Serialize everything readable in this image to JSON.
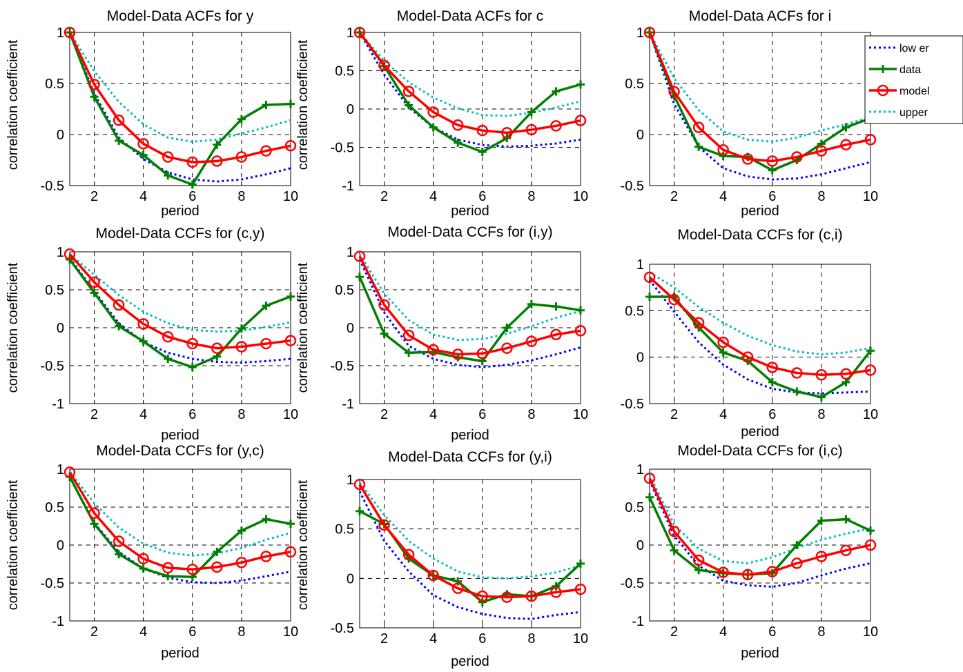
{
  "legend": {
    "entries": [
      "low er",
      "data",
      "model",
      "upper"
    ],
    "placement": "right of top-right panel"
  },
  "colors": {
    "lower": "#0000ff",
    "data": "#007f00",
    "model": "#ff0000",
    "upper": "#00bfbf",
    "grid": "#000000"
  },
  "chart_data": [
    {
      "type": "line",
      "title": "Model-Data ACFs for y",
      "xlabel": "period",
      "ylabel": "correlation coefficient",
      "xlim": [
        1,
        10
      ],
      "ylim": [
        -0.5,
        1
      ],
      "grid": true,
      "xticks": [
        2,
        4,
        6,
        8,
        10
      ],
      "yticks": [
        -0.5,
        0,
        0.5,
        1
      ],
      "ytick_labels": [
        "-0.5",
        "0",
        "0.5",
        "1"
      ],
      "x": [
        1,
        2,
        3,
        4,
        5,
        6,
        7,
        8,
        9,
        10
      ],
      "series": [
        {
          "name": "low er",
          "values": [
            1.0,
            0.4,
            -0.03,
            -0.24,
            -0.37,
            -0.44,
            -0.46,
            -0.44,
            -0.39,
            -0.33
          ]
        },
        {
          "name": "data",
          "values": [
            1.0,
            0.37,
            -0.06,
            -0.2,
            -0.4,
            -0.49,
            -0.1,
            0.15,
            0.29,
            0.3
          ]
        },
        {
          "name": "model",
          "values": [
            1.0,
            0.49,
            0.14,
            -0.09,
            -0.22,
            -0.27,
            -0.26,
            -0.22,
            -0.16,
            -0.11
          ]
        },
        {
          "name": "upper",
          "values": [
            1.0,
            0.62,
            0.32,
            0.1,
            -0.03,
            -0.07,
            -0.05,
            0.01,
            0.07,
            0.14
          ]
        }
      ]
    },
    {
      "type": "line",
      "title": "Model-Data ACFs for c",
      "xlabel": "period",
      "ylabel": "correlation coefficient",
      "xlim": [
        1,
        10
      ],
      "ylim": [
        -1,
        1
      ],
      "grid": true,
      "xticks": [
        2,
        4,
        6,
        8,
        10
      ],
      "yticks": [
        -1,
        -0.5,
        0,
        0.5,
        1
      ],
      "ytick_labels": [
        "-1",
        "-0.5",
        "0",
        "0.5",
        "1"
      ],
      "x": [
        1,
        2,
        3,
        4,
        5,
        6,
        7,
        8,
        9,
        10
      ],
      "series": [
        {
          "name": "low er",
          "values": [
            1.0,
            0.45,
            0.02,
            -0.24,
            -0.4,
            -0.47,
            -0.49,
            -0.48,
            -0.45,
            -0.4
          ]
        },
        {
          "name": "data",
          "values": [
            1.0,
            0.56,
            0.05,
            -0.24,
            -0.44,
            -0.56,
            -0.38,
            -0.04,
            0.23,
            0.32
          ]
        },
        {
          "name": "model",
          "values": [
            1.0,
            0.57,
            0.23,
            -0.04,
            -0.21,
            -0.28,
            -0.31,
            -0.27,
            -0.22,
            -0.15
          ]
        },
        {
          "name": "upper",
          "values": [
            1.0,
            0.63,
            0.35,
            0.15,
            0.01,
            -0.08,
            -0.09,
            -0.05,
            0.02,
            0.1
          ]
        }
      ]
    },
    {
      "type": "line",
      "title": "Model-Data ACFs for i",
      "xlabel": "period",
      "ylabel": "",
      "xlim": [
        1,
        10
      ],
      "ylim": [
        -0.5,
        1
      ],
      "grid": true,
      "xticks": [
        2,
        4,
        6,
        8,
        10
      ],
      "yticks": [
        -0.5,
        0,
        0.5,
        1
      ],
      "ytick_labels": [
        "-0.5",
        "0",
        "0.5",
        "1"
      ],
      "x": [
        1,
        2,
        3,
        4,
        5,
        6,
        7,
        8,
        9,
        10
      ],
      "series": [
        {
          "name": "low er",
          "values": [
            1.0,
            0.3,
            -0.12,
            -0.33,
            -0.41,
            -0.44,
            -0.43,
            -0.39,
            -0.33,
            -0.27
          ]
        },
        {
          "name": "data",
          "values": [
            1.0,
            0.38,
            -0.12,
            -0.21,
            -0.22,
            -0.35,
            -0.25,
            -0.09,
            0.07,
            0.16
          ]
        },
        {
          "name": "model",
          "values": [
            1.0,
            0.42,
            0.07,
            -0.15,
            -0.24,
            -0.26,
            -0.22,
            -0.16,
            -0.1,
            -0.05
          ]
        },
        {
          "name": "upper",
          "values": [
            1.0,
            0.55,
            0.24,
            0.03,
            -0.05,
            -0.07,
            -0.03,
            0.04,
            0.1,
            0.17
          ]
        }
      ]
    },
    {
      "type": "line",
      "title": "Model-Data CCFs for (c,y)",
      "xlabel": "period",
      "ylabel": "correlation coefficient",
      "xlim": [
        1,
        10
      ],
      "ylim": [
        -1,
        1
      ],
      "grid": true,
      "xticks": [
        2,
        4,
        6,
        8,
        10
      ],
      "yticks": [
        -1,
        -0.5,
        0,
        0.5,
        1
      ],
      "ytick_labels": [
        "-1",
        "-0.5",
        "0",
        "0.5",
        "1"
      ],
      "x": [
        1,
        2,
        3,
        4,
        5,
        6,
        7,
        8,
        9,
        10
      ],
      "series": [
        {
          "name": "low er",
          "values": [
            0.92,
            0.48,
            0.06,
            -0.19,
            -0.33,
            -0.41,
            -0.45,
            -0.46,
            -0.44,
            -0.41
          ]
        },
        {
          "name": "data",
          "values": [
            0.9,
            0.46,
            0.02,
            -0.18,
            -0.41,
            -0.52,
            -0.38,
            -0.01,
            0.29,
            0.41
          ]
        },
        {
          "name": "model",
          "values": [
            0.97,
            0.6,
            0.3,
            0.05,
            -0.12,
            -0.21,
            -0.27,
            -0.25,
            -0.21,
            -0.17
          ]
        },
        {
          "name": "upper",
          "values": [
            0.97,
            0.7,
            0.43,
            0.21,
            0.06,
            -0.03,
            -0.05,
            -0.04,
            0.01,
            0.07
          ]
        }
      ]
    },
    {
      "type": "line",
      "title": "Model-Data CCFs for (i,y)",
      "xlabel": "period",
      "ylabel": "correlation coefficient",
      "xlim": [
        1,
        10
      ],
      "ylim": [
        -1,
        1
      ],
      "grid": true,
      "xticks": [
        2,
        4,
        6,
        8,
        10
      ],
      "yticks": [
        -1,
        -0.5,
        0,
        0.5,
        1
      ],
      "ytick_labels": [
        "-1",
        "-0.5",
        "0",
        "0.5",
        "1"
      ],
      "x": [
        1,
        2,
        3,
        4,
        5,
        6,
        7,
        8,
        9,
        10
      ],
      "series": [
        {
          "name": "low er",
          "values": [
            0.9,
            0.2,
            -0.24,
            -0.41,
            -0.49,
            -0.52,
            -0.49,
            -0.43,
            -0.35,
            -0.26
          ]
        },
        {
          "name": "data",
          "values": [
            0.67,
            -0.08,
            -0.33,
            -0.32,
            -0.39,
            -0.44,
            0.0,
            0.31,
            0.28,
            0.23
          ]
        },
        {
          "name": "model",
          "values": [
            0.94,
            0.3,
            -0.1,
            -0.29,
            -0.35,
            -0.34,
            -0.27,
            -0.18,
            -0.09,
            -0.04
          ]
        },
        {
          "name": "upper",
          "values": [
            0.97,
            0.45,
            0.1,
            -0.09,
            -0.16,
            -0.15,
            -0.08,
            0.02,
            0.13,
            0.22
          ]
        }
      ]
    },
    {
      "type": "line",
      "title": "Model-Data CCFs for (c,i)",
      "xlabel": "period",
      "ylabel": "",
      "xlim": [
        1,
        10
      ],
      "ylim": [
        -0.5,
        1
      ],
      "grid": true,
      "xticks": [
        2,
        4,
        6,
        8,
        10
      ],
      "yticks": [
        -0.5,
        0,
        0.5,
        1
      ],
      "ytick_labels": [
        "-0.5",
        "0",
        "0.5",
        "1"
      ],
      "x": [
        1,
        2,
        3,
        4,
        5,
        6,
        7,
        8,
        9,
        10
      ],
      "series": [
        {
          "name": "low er",
          "values": [
            0.83,
            0.49,
            0.16,
            -0.08,
            -0.24,
            -0.34,
            -0.38,
            -0.39,
            -0.38,
            -0.37
          ]
        },
        {
          "name": "data",
          "values": [
            0.65,
            0.65,
            0.32,
            0.05,
            -0.04,
            -0.27,
            -0.37,
            -0.43,
            -0.27,
            0.07
          ]
        },
        {
          "name": "model",
          "values": [
            0.86,
            0.62,
            0.37,
            0.16,
            0.0,
            -0.11,
            -0.17,
            -0.19,
            -0.18,
            -0.14
          ]
        },
        {
          "name": "upper",
          "values": [
            0.91,
            0.75,
            0.54,
            0.37,
            0.23,
            0.13,
            0.06,
            0.03,
            0.05,
            0.1
          ]
        }
      ]
    },
    {
      "type": "line",
      "title": "Model-Data CCFs for (y,c)",
      "xlabel": "period",
      "ylabel": "correlation coefficient",
      "xlim": [
        1,
        10
      ],
      "ylim": [
        -1,
        1
      ],
      "grid": true,
      "xticks": [
        2,
        4,
        6,
        8,
        10
      ],
      "yticks": [
        -1,
        -0.5,
        0,
        0.5,
        1
      ],
      "ytick_labels": [
        "-1",
        "-0.5",
        "0",
        "0.5",
        "1"
      ],
      "x": [
        1,
        2,
        3,
        4,
        5,
        6,
        7,
        8,
        9,
        10
      ],
      "series": [
        {
          "name": "low er",
          "values": [
            0.9,
            0.29,
            -0.09,
            -0.31,
            -0.43,
            -0.49,
            -0.5,
            -0.47,
            -0.41,
            -0.35
          ]
        },
        {
          "name": "data",
          "values": [
            0.9,
            0.28,
            -0.12,
            -0.31,
            -0.41,
            -0.42,
            -0.09,
            0.19,
            0.34,
            0.28
          ]
        },
        {
          "name": "model",
          "values": [
            0.96,
            0.42,
            0.05,
            -0.18,
            -0.3,
            -0.32,
            -0.29,
            -0.23,
            -0.15,
            -0.09
          ]
        },
        {
          "name": "upper",
          "values": [
            0.97,
            0.55,
            0.23,
            0.02,
            -0.1,
            -0.14,
            -0.11,
            -0.04,
            0.07,
            0.16
          ]
        }
      ]
    },
    {
      "type": "line",
      "title": "Model-Data CCFs for (y,i)",
      "xlabel": "period",
      "ylabel": "correlation coefficient",
      "xlim": [
        1,
        10
      ],
      "ylim": [
        -0.5,
        1
      ],
      "grid": true,
      "xticks": [
        2,
        4,
        6,
        8,
        10
      ],
      "yticks": [
        -0.5,
        0,
        0.5,
        1
      ],
      "ytick_labels": [
        "-0.5",
        "0",
        "0.5",
        "1"
      ],
      "x": [
        1,
        2,
        3,
        4,
        5,
        6,
        7,
        8,
        9,
        10
      ],
      "series": [
        {
          "name": "low er",
          "values": [
            0.88,
            0.38,
            0.07,
            -0.17,
            -0.29,
            -0.36,
            -0.4,
            -0.41,
            -0.37,
            -0.34
          ]
        },
        {
          "name": "data",
          "values": [
            0.68,
            0.55,
            0.2,
            0.03,
            -0.03,
            -0.24,
            -0.16,
            -0.18,
            -0.08,
            0.15
          ]
        },
        {
          "name": "model",
          "values": [
            0.95,
            0.54,
            0.24,
            0.03,
            -0.1,
            -0.18,
            -0.19,
            -0.18,
            -0.14,
            -0.11
          ]
        },
        {
          "name": "upper",
          "values": [
            0.97,
            0.64,
            0.38,
            0.2,
            0.07,
            0.01,
            0.0,
            0.02,
            0.06,
            0.13
          ]
        }
      ]
    },
    {
      "type": "line",
      "title": "Model-Data CCFs for (i,c)",
      "xlabel": "period",
      "ylabel": "",
      "xlim": [
        1,
        10
      ],
      "ylim": [
        -1,
        1
      ],
      "grid": true,
      "xticks": [
        2,
        4,
        6,
        8,
        10
      ],
      "yticks": [
        -1,
        -0.5,
        0,
        0.5,
        1
      ],
      "ytick_labels": [
        "-1",
        "-0.5",
        "0",
        "0.5",
        "1"
      ],
      "x": [
        1,
        2,
        3,
        4,
        5,
        6,
        7,
        8,
        9,
        10
      ],
      "series": [
        {
          "name": "low er",
          "values": [
            0.85,
            0.12,
            -0.27,
            -0.47,
            -0.53,
            -0.55,
            -0.5,
            -0.4,
            -0.31,
            -0.24
          ]
        },
        {
          "name": "data",
          "values": [
            0.63,
            -0.07,
            -0.33,
            -0.37,
            -0.39,
            -0.37,
            0.0,
            0.32,
            0.34,
            0.19
          ]
        },
        {
          "name": "model",
          "values": [
            0.88,
            0.18,
            -0.2,
            -0.36,
            -0.39,
            -0.35,
            -0.24,
            -0.15,
            -0.07,
            0.0
          ]
        },
        {
          "name": "upper",
          "values": [
            0.92,
            0.27,
            -0.05,
            -0.21,
            -0.24,
            -0.16,
            -0.04,
            0.07,
            0.15,
            0.22
          ]
        }
      ]
    }
  ]
}
